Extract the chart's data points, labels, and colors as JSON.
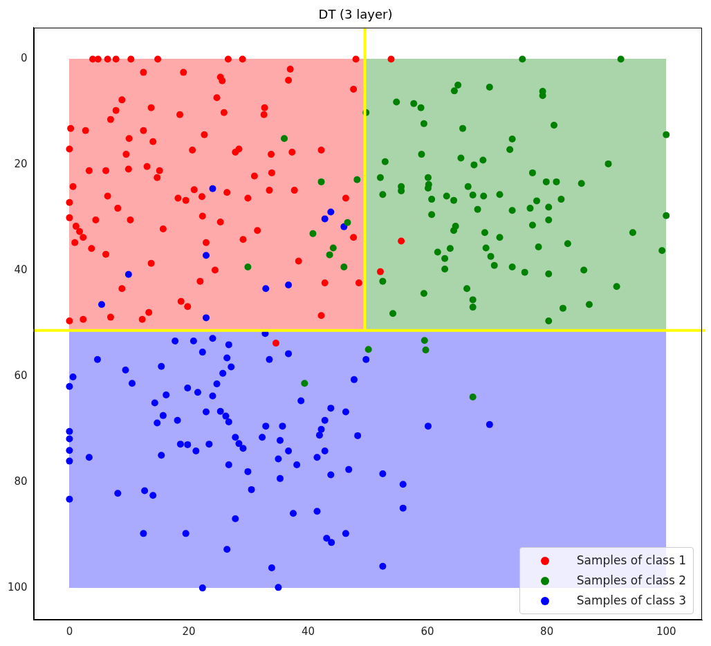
{
  "chart_data": {
    "type": "scatter",
    "title": "DT (3 layer)",
    "xlim": [
      -6,
      106
    ],
    "ylim": [
      106,
      -6
    ],
    "xticks": [
      0,
      20,
      40,
      60,
      80,
      100
    ],
    "yticks": [
      0,
      20,
      40,
      60,
      80,
      100
    ],
    "grid": false,
    "legend": "bottom right",
    "marker": "circle",
    "ref_lines": [
      {
        "axis": "x",
        "value": 49.5,
        "color": "#ffff00"
      },
      {
        "axis": "y",
        "value": 51.3,
        "color": "#ffff00"
      }
    ],
    "series": [
      {
        "name": "Samples of class 1",
        "color": "#ff0000",
        "x": [
          3.9,
          4.8,
          6.4,
          7.8,
          10.3,
          14.8,
          26.6,
          29.0,
          48.0,
          53.9,
          12.4,
          19.1,
          25.3,
          25.6,
          37.0,
          36.7,
          47.6,
          8.8,
          7.8,
          6.9,
          13.7,
          18.5,
          24.7,
          25.9,
          32.7,
          32.6,
          0.2,
          2.7,
          12.4,
          10.0,
          14.0,
          22.6,
          0.0,
          9.5,
          20.6,
          27.8,
          28.4,
          33.8,
          37.3,
          42.2,
          3.3,
          6.1,
          9.9,
          13.0,
          15.1,
          14.7,
          31.0,
          33.9,
          0.6,
          6.4,
          8.1,
          0.0,
          18.2,
          19.5,
          20.9,
          22.2,
          26.4,
          29.9,
          33.5,
          37.7,
          46.3,
          0.0,
          1.1,
          1.7,
          2.3,
          0.9,
          4.4,
          10.2,
          15.7,
          22.3,
          25.3,
          31.5,
          29.1,
          47.6,
          55.6,
          3.7,
          6.1,
          22.9,
          13.7,
          24.4,
          21.9,
          8.8,
          18.7,
          19.8,
          38.4,
          42.8,
          48.5,
          52.1,
          42.2,
          0.0,
          2.3,
          6.9,
          13.3,
          12.2,
          34.6
        ],
        "values": [
          0,
          0,
          0,
          0,
          0,
          0,
          0,
          0,
          0,
          0,
          2.5,
          2.5,
          3.4,
          4.1,
          1.9,
          4.0,
          5.7,
          7.7,
          9.7,
          11.4,
          9.2,
          10.5,
          7.3,
          10.1,
          9.2,
          10.5,
          13.1,
          13.5,
          13.5,
          15.0,
          15.6,
          14.3,
          17.0,
          18.0,
          17.2,
          17.6,
          17.0,
          18.0,
          17.6,
          17.2,
          21.1,
          21.1,
          20.8,
          20.3,
          21.1,
          22.4,
          22.1,
          21.5,
          24.1,
          25.9,
          28.2,
          27.1,
          26.3,
          26.7,
          24.7,
          26.0,
          25.2,
          26.3,
          24.8,
          24.8,
          26.3,
          30.0,
          31.6,
          32.6,
          33.7,
          34.7,
          30.4,
          30.4,
          32.1,
          29.7,
          30.8,
          32.4,
          34.1,
          33.7,
          34.4,
          35.8,
          36.9,
          34.7,
          38.6,
          39.9,
          42.0,
          43.4,
          45.8,
          46.8,
          38.2,
          42.3,
          42.3,
          40.2,
          48.5,
          49.5,
          49.2,
          48.8,
          47.9,
          49.2,
          53.7
        ]
      },
      {
        "name": "Samples of class 2",
        "color": "#008000",
        "x": [
          36.0,
          42.2,
          48.2,
          49.7,
          46.6,
          40.8,
          44.2,
          43.6,
          46.0,
          29.9,
          54.8,
          57.7,
          58.9,
          59.4,
          65.1,
          64.5,
          65.9,
          59.0,
          52.9,
          65.6,
          67.8,
          52.1,
          55.6,
          55.6,
          52.5,
          60.1,
          60.2,
          60.1,
          60.7,
          63.2,
          64.4,
          66.8,
          67.6,
          60.7,
          68.4,
          64.7,
          64.4,
          61.7,
          63.8,
          62.9,
          62.9,
          52.5,
          59.4,
          66.6,
          67.6,
          67.6,
          54.2,
          75.9,
          92.4,
          70.4,
          79.3,
          79.3,
          81.2,
          100.0,
          74.2,
          73.8,
          69.3,
          90.3,
          77.6,
          79.9,
          81.6,
          85.8,
          69.4,
          72.1,
          74.2,
          77.2,
          78.3,
          80.3,
          82.4,
          80.3,
          77.6,
          100.0,
          69.6,
          72.1,
          94.4,
          78.6,
          83.5,
          99.3,
          69.8,
          70.6,
          71.2,
          74.2,
          76.3,
          80.3,
          86.2,
          91.7,
          82.7,
          87.1,
          80.3,
          50.1,
          59.5,
          59.7,
          67.6,
          39.4
        ],
        "values": [
          15.0,
          23.2,
          22.8,
          10.1,
          30.9,
          33.0,
          35.7,
          37.0,
          39.3,
          39.3,
          8.1,
          8.4,
          9.2,
          12.2,
          4.9,
          6.0,
          13.1,
          18.0,
          19.4,
          18.7,
          20.0,
          22.4,
          24.1,
          24.9,
          25.6,
          22.4,
          23.7,
          24.4,
          26.5,
          25.9,
          26.7,
          24.1,
          25.7,
          29.4,
          28.4,
          31.6,
          32.4,
          36.5,
          35.8,
          37.7,
          39.7,
          42.0,
          44.3,
          43.4,
          45.5,
          46.9,
          48.1,
          0,
          0,
          5.3,
          6.1,
          6.9,
          12.5,
          14.3,
          15.1,
          17.1,
          19.1,
          19.8,
          21.5,
          23.2,
          23.2,
          23.5,
          25.9,
          25.6,
          28.6,
          28.2,
          26.8,
          28.0,
          26.5,
          30.4,
          31.4,
          29.6,
          32.8,
          33.7,
          32.8,
          35.5,
          34.9,
          36.2,
          35.7,
          37.3,
          39.0,
          39.3,
          40.3,
          40.6,
          39.9,
          43.0,
          47.1,
          46.4,
          49.5,
          54.9,
          53.2,
          55.0,
          63.9,
          61.3
        ]
      },
      {
        "name": "Samples of class 3",
        "color": "#0000ff",
        "x": [
          24.0,
          22.9,
          9.9,
          32.9,
          5.4,
          22.9,
          43.8,
          42.8,
          46.0,
          36.7,
          32.8,
          33.5,
          36.7,
          49.7,
          47.7,
          38.8,
          43.8,
          46.3,
          42.8,
          42.2,
          41.9,
          32.9,
          32.3,
          35.7,
          35.3,
          36.7,
          35.0,
          38.1,
          42.8,
          41.5,
          48.3,
          60.1,
          70.4,
          46.8,
          43.8,
          52.5,
          55.9,
          35.3,
          55.9,
          37.5,
          41.5,
          43.1,
          43.9,
          46.3,
          33.9,
          52.5,
          35.0,
          17.7,
          20.8,
          24.0,
          26.7,
          22.3,
          26.4,
          27.1,
          25.7,
          24.7,
          24.0,
          4.7,
          9.4,
          10.5,
          15.4,
          0.6,
          0.0,
          19.8,
          21.5,
          16.2,
          14.3,
          15.7,
          14.7,
          18.1,
          22.9,
          25.3,
          26.2,
          26.7,
          0.0,
          0.0,
          0.0,
          0.0,
          3.3,
          15.4,
          18.6,
          19.8,
          21.2,
          23.4,
          27.8,
          28.4,
          29.1,
          26.7,
          29.9,
          30.5,
          0.0,
          8.1,
          12.6,
          14.0,
          27.8,
          12.4,
          19.5,
          26.4,
          22.3
        ],
        "values": [
          24.5,
          37.1,
          40.7,
          43.4,
          46.4,
          48.9,
          28.9,
          30.2,
          31.7,
          42.7,
          51.9,
          56.8,
          55.7,
          56.8,
          60.6,
          64.6,
          66.0,
          66.7,
          68.3,
          70.0,
          71.1,
          69.4,
          71.5,
          69.4,
          72.1,
          74.1,
          75.6,
          76.7,
          74.1,
          75.3,
          71.2,
          69.4,
          69.1,
          77.6,
          78.6,
          78.4,
          80.4,
          79.3,
          84.9,
          85.9,
          85.5,
          90.6,
          91.4,
          89.7,
          96.2,
          95.9,
          99.9,
          53.3,
          53.3,
          52.8,
          54.0,
          55.4,
          56.5,
          58.2,
          59.4,
          61.4,
          63.7,
          56.8,
          58.8,
          61.3,
          58.1,
          60.1,
          61.9,
          62.2,
          63.0,
          63.5,
          65.0,
          67.4,
          68.8,
          68.3,
          66.7,
          66.6,
          67.5,
          68.6,
          70.4,
          71.8,
          74.0,
          76.0,
          75.3,
          74.9,
          72.8,
          72.9,
          74.1,
          72.8,
          71.5,
          72.7,
          73.6,
          76.7,
          78.0,
          81.4,
          83.2,
          82.1,
          81.6,
          82.5,
          86.9,
          89.7,
          89.7,
          92.7,
          100.0
        ]
      }
    ]
  }
}
